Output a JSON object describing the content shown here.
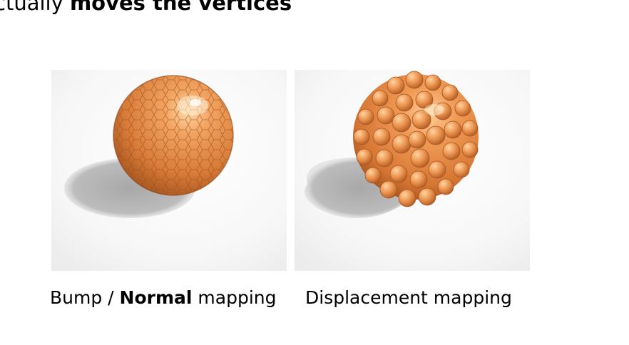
{
  "slide": {
    "top_line_prefix": "ctually ",
    "top_line_bold": "moves the vertices"
  },
  "left_image": {
    "caption_prefix": "Bump / ",
    "caption_bold": "Normal",
    "caption_suffix": " mapping"
  },
  "right_image": {
    "caption": "Displacement mapping"
  },
  "colors": {
    "sphere_orange": "#e8914b",
    "shadow": "#bdbdbd"
  }
}
